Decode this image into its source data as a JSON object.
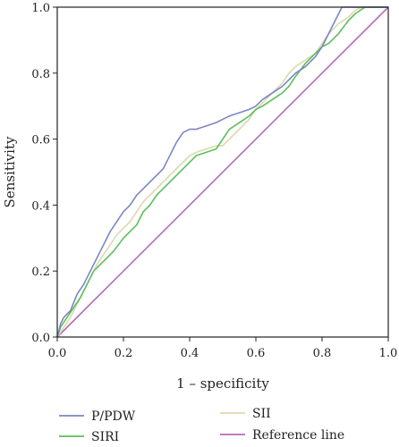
{
  "chart_data": {
    "type": "line",
    "title": "",
    "xlabel": "1 – specificity",
    "ylabel": "Sensitivity",
    "xlim": [
      0,
      1
    ],
    "ylim": [
      0,
      1
    ],
    "x_ticks": [
      "0.0",
      "0.2",
      "0.4",
      "0.6",
      "0.8",
      "1.0"
    ],
    "y_ticks": [
      "0.0",
      "0.2",
      "0.4",
      "0.6",
      "0.8",
      "1.0"
    ],
    "grid": false,
    "legend_position": "bottom",
    "series": [
      {
        "name": "P/PDW",
        "color": "#7b86c4",
        "points": [
          [
            0,
            0
          ],
          [
            0.01,
            0.04
          ],
          [
            0.02,
            0.06
          ],
          [
            0.04,
            0.08
          ],
          [
            0.06,
            0.13
          ],
          [
            0.08,
            0.16
          ],
          [
            0.1,
            0.2
          ],
          [
            0.12,
            0.24
          ],
          [
            0.14,
            0.28
          ],
          [
            0.16,
            0.32
          ],
          [
            0.18,
            0.35
          ],
          [
            0.2,
            0.38
          ],
          [
            0.22,
            0.4
          ],
          [
            0.24,
            0.43
          ],
          [
            0.26,
            0.45
          ],
          [
            0.28,
            0.47
          ],
          [
            0.3,
            0.49
          ],
          [
            0.32,
            0.51
          ],
          [
            0.34,
            0.55
          ],
          [
            0.36,
            0.59
          ],
          [
            0.38,
            0.62
          ],
          [
            0.4,
            0.63
          ],
          [
            0.42,
            0.63
          ],
          [
            0.45,
            0.64
          ],
          [
            0.48,
            0.65
          ],
          [
            0.5,
            0.66
          ],
          [
            0.52,
            0.67
          ],
          [
            0.55,
            0.68
          ],
          [
            0.58,
            0.69
          ],
          [
            0.6,
            0.7
          ],
          [
            0.62,
            0.72
          ],
          [
            0.65,
            0.74
          ],
          [
            0.68,
            0.76
          ],
          [
            0.7,
            0.78
          ],
          [
            0.72,
            0.8
          ],
          [
            0.75,
            0.82
          ],
          [
            0.78,
            0.85
          ],
          [
            0.8,
            0.88
          ],
          [
            0.82,
            0.92
          ],
          [
            0.84,
            0.96
          ],
          [
            0.86,
            1.0
          ],
          [
            1.0,
            1.0
          ]
        ]
      },
      {
        "name": "SIRI",
        "color": "#5bbf5b",
        "points": [
          [
            0,
            0
          ],
          [
            0.01,
            0.03
          ],
          [
            0.03,
            0.06
          ],
          [
            0.05,
            0.09
          ],
          [
            0.07,
            0.12
          ],
          [
            0.09,
            0.16
          ],
          [
            0.11,
            0.2
          ],
          [
            0.13,
            0.22
          ],
          [
            0.15,
            0.24
          ],
          [
            0.17,
            0.26
          ],
          [
            0.2,
            0.3
          ],
          [
            0.22,
            0.32
          ],
          [
            0.24,
            0.34
          ],
          [
            0.26,
            0.38
          ],
          [
            0.28,
            0.4
          ],
          [
            0.3,
            0.43
          ],
          [
            0.32,
            0.45
          ],
          [
            0.34,
            0.47
          ],
          [
            0.36,
            0.49
          ],
          [
            0.38,
            0.51
          ],
          [
            0.4,
            0.53
          ],
          [
            0.42,
            0.55
          ],
          [
            0.45,
            0.56
          ],
          [
            0.48,
            0.57
          ],
          [
            0.5,
            0.6
          ],
          [
            0.52,
            0.63
          ],
          [
            0.55,
            0.65
          ],
          [
            0.58,
            0.67
          ],
          [
            0.6,
            0.69
          ],
          [
            0.62,
            0.7
          ],
          [
            0.65,
            0.72
          ],
          [
            0.68,
            0.74
          ],
          [
            0.7,
            0.76
          ],
          [
            0.72,
            0.79
          ],
          [
            0.75,
            0.83
          ],
          [
            0.78,
            0.86
          ],
          [
            0.8,
            0.88
          ],
          [
            0.82,
            0.89
          ],
          [
            0.85,
            0.92
          ],
          [
            0.88,
            0.96
          ],
          [
            0.9,
            0.98
          ],
          [
            0.93,
            1.0
          ],
          [
            1.0,
            1.0
          ]
        ]
      },
      {
        "name": "SII",
        "color": "#ddd8b0",
        "points": [
          [
            0,
            0
          ],
          [
            0.02,
            0.03
          ],
          [
            0.04,
            0.06
          ],
          [
            0.06,
            0.1
          ],
          [
            0.08,
            0.14
          ],
          [
            0.1,
            0.18
          ],
          [
            0.12,
            0.22
          ],
          [
            0.14,
            0.25
          ],
          [
            0.16,
            0.28
          ],
          [
            0.18,
            0.31
          ],
          [
            0.2,
            0.33
          ],
          [
            0.22,
            0.35
          ],
          [
            0.24,
            0.38
          ],
          [
            0.26,
            0.41
          ],
          [
            0.28,
            0.43
          ],
          [
            0.3,
            0.45
          ],
          [
            0.32,
            0.47
          ],
          [
            0.34,
            0.49
          ],
          [
            0.36,
            0.51
          ],
          [
            0.38,
            0.53
          ],
          [
            0.4,
            0.55
          ],
          [
            0.42,
            0.56
          ],
          [
            0.45,
            0.57
          ],
          [
            0.48,
            0.58
          ],
          [
            0.5,
            0.58
          ],
          [
            0.52,
            0.6
          ],
          [
            0.55,
            0.63
          ],
          [
            0.58,
            0.66
          ],
          [
            0.6,
            0.69
          ],
          [
            0.62,
            0.71
          ],
          [
            0.65,
            0.74
          ],
          [
            0.68,
            0.77
          ],
          [
            0.7,
            0.8
          ],
          [
            0.72,
            0.82
          ],
          [
            0.75,
            0.84
          ],
          [
            0.78,
            0.86
          ],
          [
            0.8,
            0.89
          ],
          [
            0.82,
            0.92
          ],
          [
            0.85,
            0.95
          ],
          [
            0.88,
            0.97
          ],
          [
            0.9,
            0.99
          ],
          [
            0.92,
            1.0
          ],
          [
            1.0,
            1.0
          ]
        ]
      },
      {
        "name": "Reference line",
        "color": "#b46db4",
        "points": [
          [
            0,
            0
          ],
          [
            1,
            1
          ]
        ]
      }
    ]
  }
}
